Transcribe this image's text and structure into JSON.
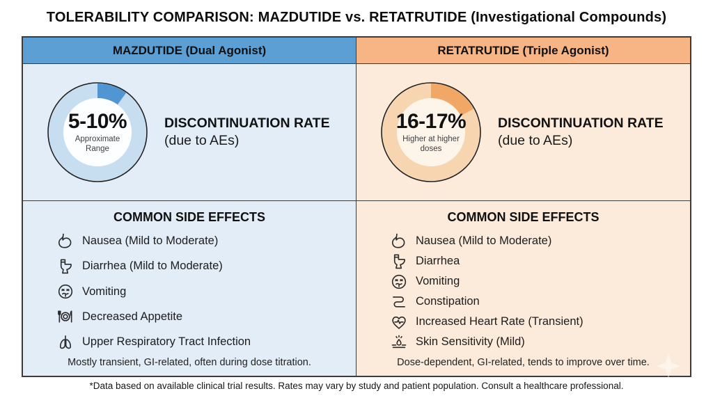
{
  "title": "TOLERABILITY COMPARISON: MAZDUTIDE vs. RETATRUTIDE (Investigational Compounds)",
  "footnote": "*Data based on available clinical trial results. Rates may vary by study and patient population. Consult a healthcare professional.",
  "columns": [
    {
      "header": "MAZDUTIDE (Dual Agonist)",
      "header_bg": "#5b9fd4",
      "panel_bg": "#e2edf7",
      "ring_light": "#c7ddf0",
      "ring_dark": "#4f96d2",
      "center_bg": "#fdfeff",
      "donut": {
        "value_label": "5-10%",
        "sub_label": "Approximate Range",
        "fraction": 0.1
      },
      "rate_title": "DISCONTINUATION RATE",
      "rate_subtitle": "(due to AEs)",
      "effects_heading": "COMMON SIDE EFFECTS",
      "effects": [
        {
          "icon": "stomach-icon",
          "label": "Nausea (Mild to Moderate)"
        },
        {
          "icon": "toilet-icon",
          "label": "Diarrhea (Mild to Moderate)"
        },
        {
          "icon": "nauseated-face-icon",
          "label": "Vomiting"
        },
        {
          "icon": "plate-cutlery-icon",
          "label": "Decreased Appetite"
        },
        {
          "icon": "lungs-icon",
          "label": "Upper Respiratory Tract Infection"
        }
      ],
      "note": "Mostly transient, GI-related, often during dose titration."
    },
    {
      "header": "RETATRUTIDE (Triple Agonist)",
      "header_bg": "#f7b585",
      "panel_bg": "#fcebdb",
      "ring_light": "#f6d5b0",
      "ring_dark": "#f1a765",
      "center_bg": "#fdf4ea",
      "donut": {
        "value_label": "16-17%",
        "sub_label": "Higher at higher doses",
        "fraction": 0.17
      },
      "rate_title": "DISCONTINUATION RATE",
      "rate_subtitle": "(due to AEs)",
      "effects_heading": "COMMON SIDE EFFECTS",
      "effects": [
        {
          "icon": "stomach-icon",
          "label": "Nausea (Mild to Moderate)"
        },
        {
          "icon": "toilet-icon",
          "label": "Diarrhea"
        },
        {
          "icon": "nauseated-face-icon",
          "label": "Vomiting"
        },
        {
          "icon": "intestine-icon",
          "label": "Constipation"
        },
        {
          "icon": "heart-pulse-icon",
          "label": "Increased Heart Rate (Transient)"
        },
        {
          "icon": "skin-sensitivity-icon",
          "label": "Skin Sensitivity (Mild)"
        }
      ],
      "note": "Dose-dependent, GI-related, tends to improve over time."
    }
  ]
}
